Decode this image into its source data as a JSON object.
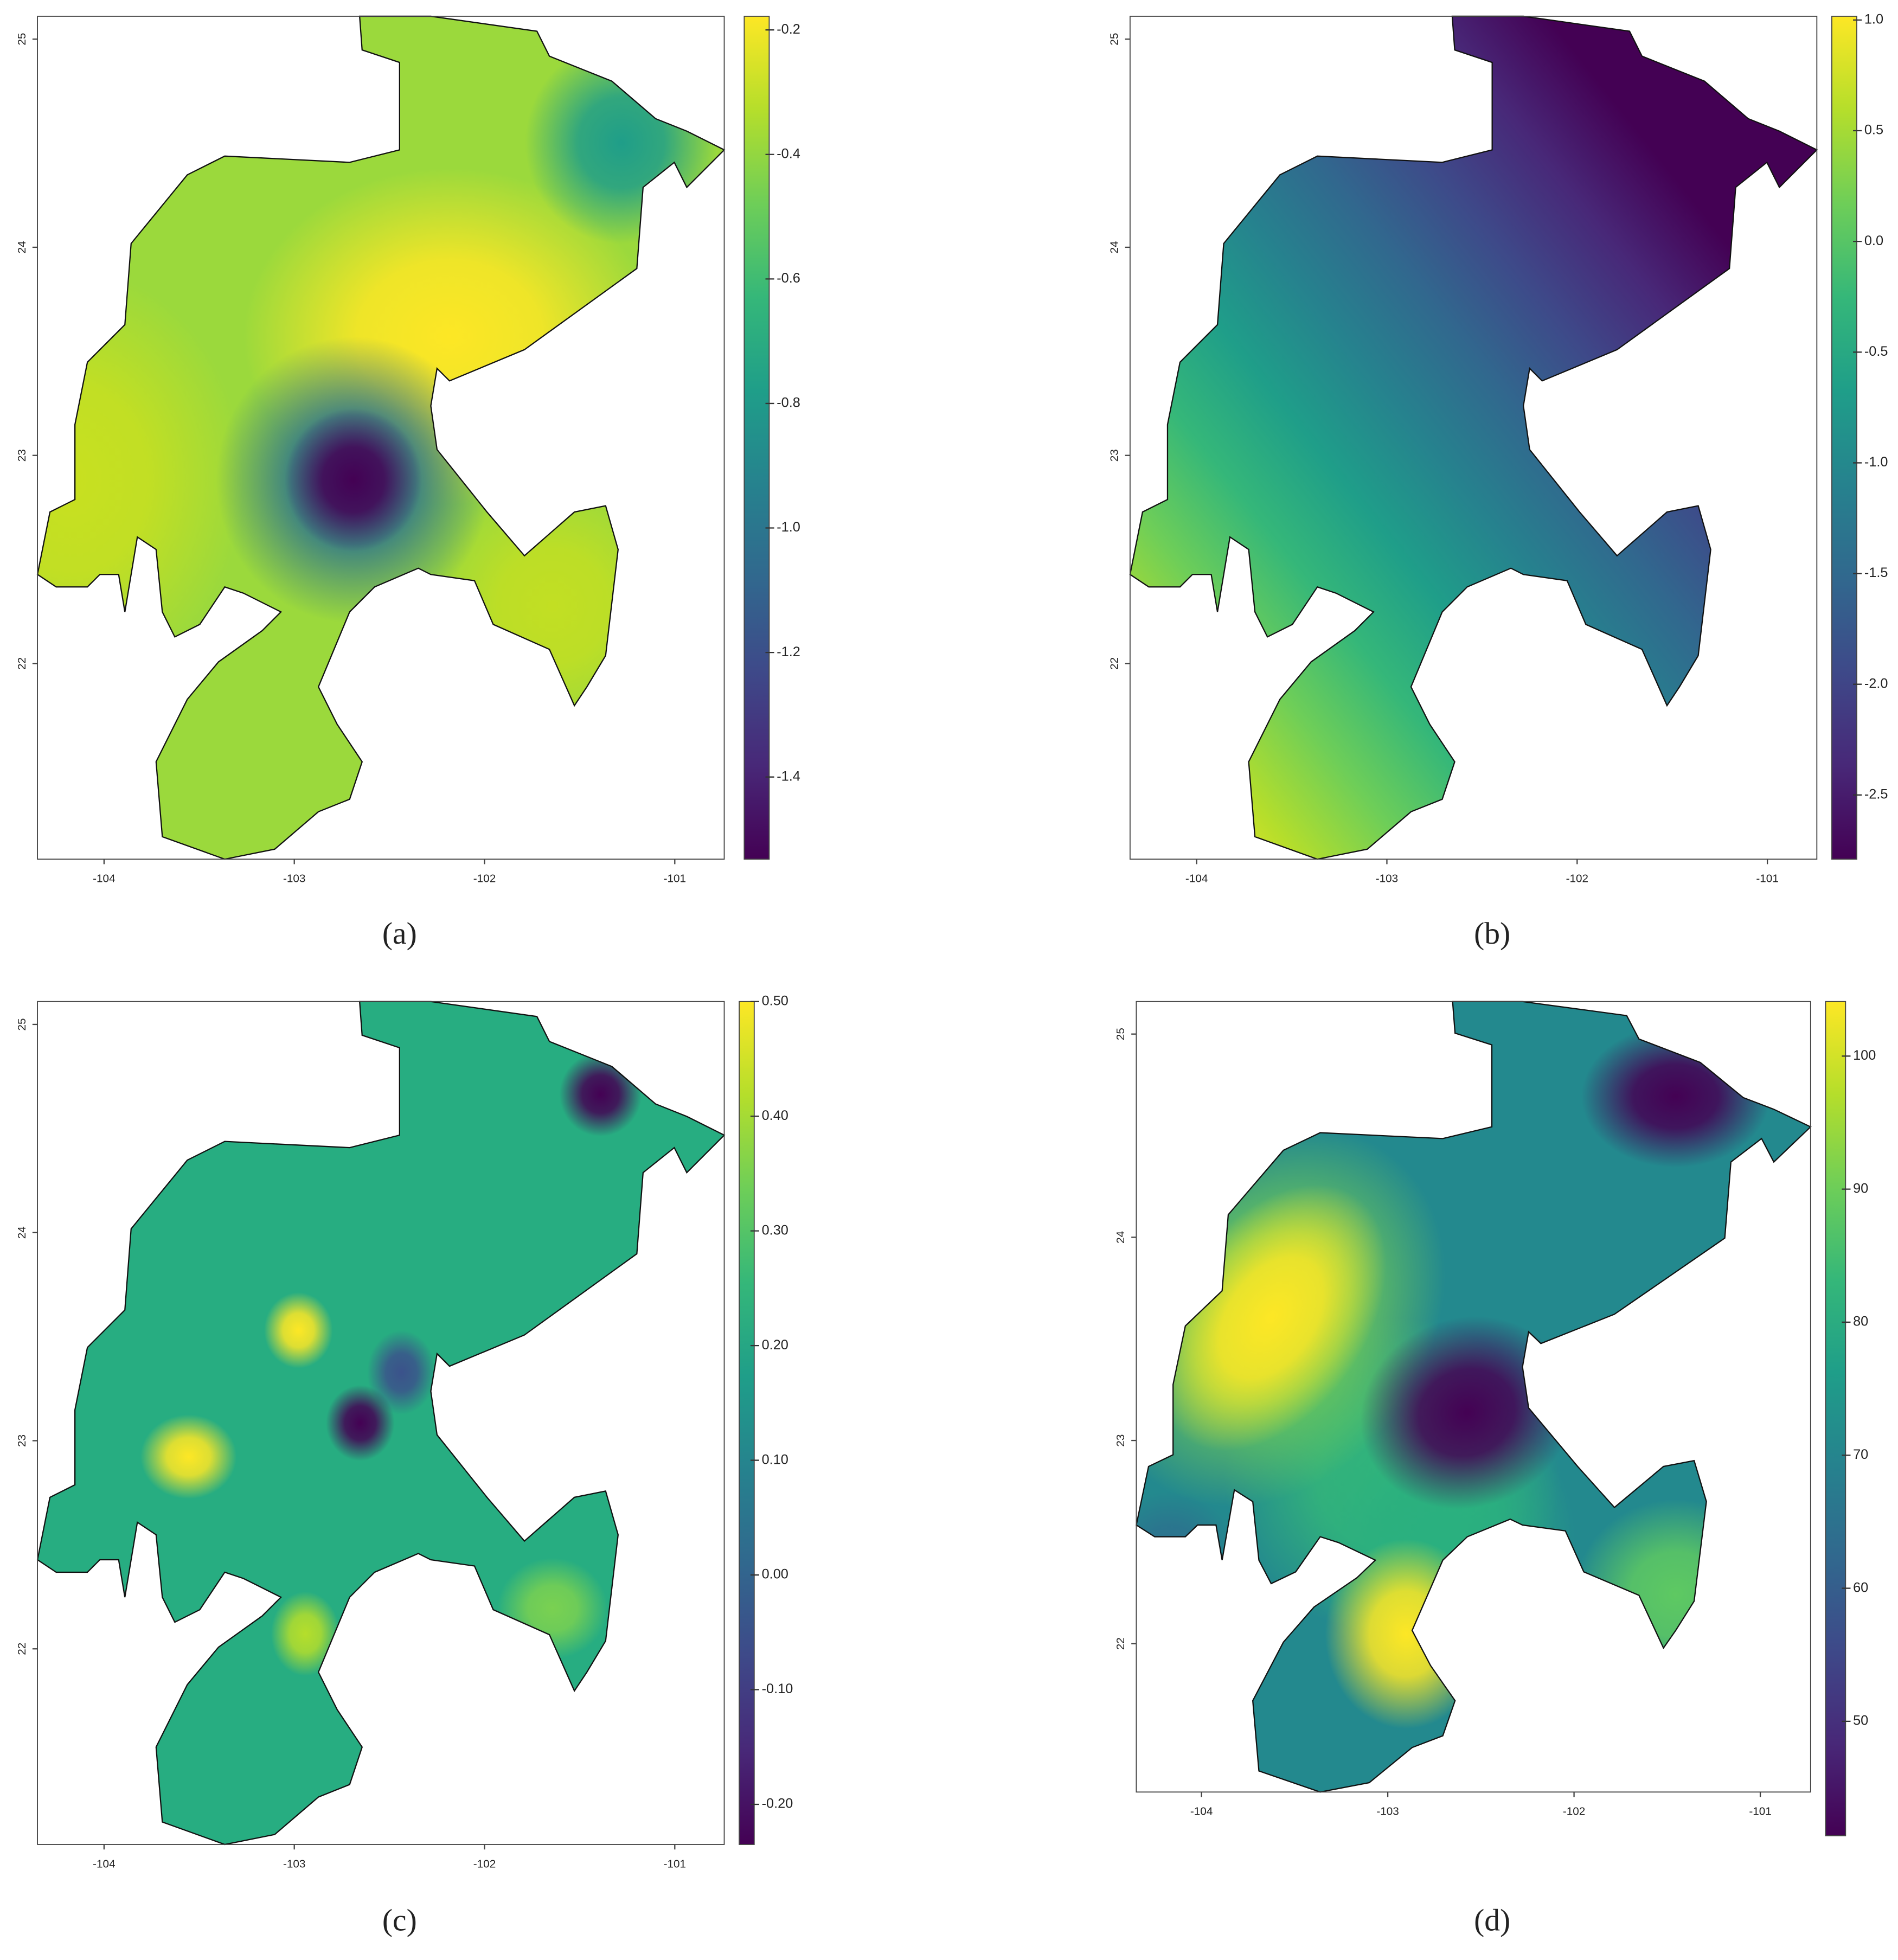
{
  "chart_data": [
    {
      "type": "heatmap",
      "label": "(a)",
      "xlim": [
        -104.35,
        -100.74
      ],
      "ylim": [
        21.06,
        25.11
      ],
      "xticks": [
        -104,
        -103,
        -102,
        -101
      ],
      "yticks": [
        22,
        23,
        24,
        25
      ],
      "colormap": "viridis",
      "clim": [
        -1.532,
        -0.178
      ],
      "cticks": [
        -0.2,
        -0.4,
        -0.6,
        -0.8,
        {
          "value": -1,
          "label": "-1.0"
        },
        -1.2,
        -1.4
      ]
    },
    {
      "type": "heatmap",
      "label": "(b)",
      "xlim": [
        -104.35,
        -100.74
      ],
      "ylim": [
        21.06,
        25.11
      ],
      "xticks": [
        -104,
        -103,
        -102,
        -101
      ],
      "yticks": [
        22,
        23,
        24,
        25
      ],
      "colormap": "viridis",
      "clim": [
        -2.79,
        1.017
      ],
      "cticks": [
        {
          "value": 1,
          "label": "1.0"
        },
        0.5,
        {
          "value": 0,
          "label": "0.0"
        },
        -0.5,
        {
          "value": -1,
          "label": "-1.0"
        },
        -1.5,
        {
          "value": -2,
          "label": "-2.0"
        },
        -2.5
      ]
    },
    {
      "type": "heatmap",
      "label": "(c)",
      "xlim": [
        -104.35,
        -100.74
      ],
      "ylim": [
        21.06,
        25.11
      ],
      "xticks": [
        -104,
        -103,
        -102,
        -101
      ],
      "yticks": [
        22,
        23,
        24,
        25
      ],
      "colormap": "viridis",
      "clim": [
        -0.235,
        0.5
      ],
      "cticks": [
        {
          "value": 0.5,
          "label": "0.50"
        },
        {
          "value": 0.4,
          "label": "0.40"
        },
        {
          "value": 0.3,
          "label": "0.30"
        },
        {
          "value": 0.2,
          "label": "0.20"
        },
        {
          "value": 0.1,
          "label": "0.10"
        },
        {
          "value": 0,
          "label": "0.00"
        },
        {
          "value": -0.1,
          "label": "-0.10"
        },
        {
          "value": -0.2,
          "label": "-0.20"
        }
      ]
    },
    {
      "type": "heatmap",
      "label": "(d)",
      "xlim": [
        -104.35,
        -100.73
      ],
      "ylim": [
        21.27,
        25.16
      ],
      "xticks": [
        -104,
        -103,
        -102,
        -101
      ],
      "yticks": [
        22,
        23,
        24,
        25
      ],
      "colormap": "viridis",
      "clim": [
        41.4,
        104.1
      ],
      "cticks": [
        100,
        90,
        80,
        70,
        60,
        50
      ]
    }
  ]
}
